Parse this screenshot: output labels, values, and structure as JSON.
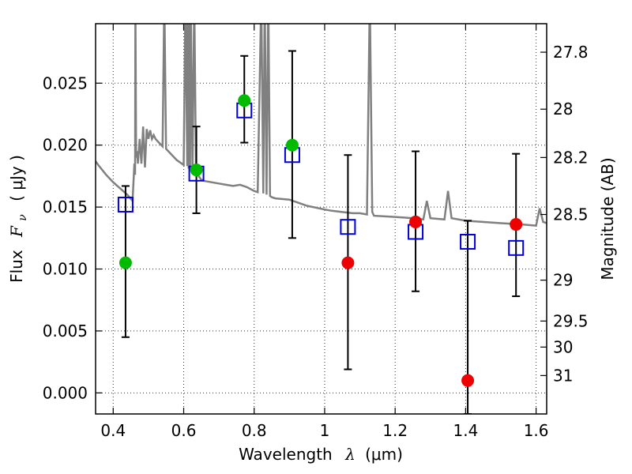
{
  "chart_data": {
    "type": "scatter",
    "xlabel": {
      "text": "Wavelength",
      "symbol": "λ",
      "unit": "(μm)"
    },
    "ylabel": {
      "text": "Flux",
      "symbol": "F",
      "sub": "ν",
      "unit": "( μJy )"
    },
    "y2label": "Magnitude (AB)",
    "xlim": [
      0.35,
      1.63
    ],
    "ylim": [
      -0.0017,
      0.0298
    ],
    "grid": true,
    "x_ticks": [
      {
        "v": 0.4,
        "label": "0.4"
      },
      {
        "v": 0.6,
        "label": "0.6"
      },
      {
        "v": 0.8,
        "label": "0.8"
      },
      {
        "v": 1.0,
        "label": "1"
      },
      {
        "v": 1.2,
        "label": "1.2"
      },
      {
        "v": 1.4,
        "label": "1.4"
      },
      {
        "v": 1.6,
        "label": "1.6"
      }
    ],
    "y_ticks": [
      {
        "v": 0.0,
        "label": "0.000"
      },
      {
        "v": 0.005,
        "label": "0.005"
      },
      {
        "v": 0.01,
        "label": "0.010"
      },
      {
        "v": 0.015,
        "label": "0.015"
      },
      {
        "v": 0.02,
        "label": "0.020"
      },
      {
        "v": 0.025,
        "label": "0.025"
      }
    ],
    "y2_ticks": [
      {
        "label": "27.8",
        "flux": 0.0275
      },
      {
        "label": "28",
        "flux": 0.0229
      },
      {
        "label": "28.2",
        "flux": 0.019
      },
      {
        "label": "28.5",
        "flux": 0.0144
      },
      {
        "label": "29",
        "flux": 0.0091
      },
      {
        "label": "29.5",
        "flux": 0.0058
      },
      {
        "label": "30",
        "flux": 0.0037
      },
      {
        "label": "31",
        "flux": 0.0014
      }
    ],
    "model_sed": {
      "color": "#808080",
      "x": [
        0.35,
        0.36,
        0.38,
        0.4,
        0.42,
        0.44,
        0.455,
        0.46,
        0.462,
        0.463,
        0.465,
        0.468,
        0.47,
        0.475,
        0.48,
        0.485,
        0.49,
        0.495,
        0.5,
        0.505,
        0.51,
        0.515,
        0.52,
        0.53,
        0.54,
        0.545,
        0.55,
        0.56,
        0.58,
        0.6,
        0.605,
        0.61,
        0.612,
        0.614,
        0.616,
        0.618,
        0.62,
        0.625,
        0.63,
        0.635,
        0.64,
        0.645,
        0.65,
        0.66,
        0.7,
        0.72,
        0.74,
        0.76,
        0.78,
        0.8,
        0.81,
        0.82,
        0.826,
        0.83,
        0.835,
        0.84,
        0.845,
        0.85,
        0.86,
        0.9,
        0.91,
        0.92,
        0.95,
        1.0,
        1.02,
        1.05,
        1.08,
        1.1,
        1.12,
        1.128,
        1.135,
        1.14,
        1.2,
        1.25,
        1.28,
        1.29,
        1.3,
        1.34,
        1.35,
        1.36,
        1.4,
        1.5,
        1.56,
        1.6,
        1.61,
        1.62,
        1.63
      ],
      "y": [
        0.0187,
        0.0183,
        0.0176,
        0.017,
        0.0165,
        0.016,
        0.0155,
        0.0185,
        0.0176,
        0.032,
        0.019,
        0.0195,
        0.0185,
        0.0205,
        0.0185,
        0.0215,
        0.0182,
        0.0213,
        0.0205,
        0.0212,
        0.0205,
        0.0208,
        0.0205,
        0.0202,
        0.0199,
        0.032,
        0.0197,
        0.0194,
        0.0188,
        0.0184,
        0.032,
        0.0183,
        0.032,
        0.0181,
        0.032,
        0.018,
        0.032,
        0.0179,
        0.032,
        0.0178,
        0.0176,
        0.0174,
        0.0172,
        0.0171,
        0.0169,
        0.0168,
        0.0167,
        0.0168,
        0.0166,
        0.0163,
        0.0162,
        0.032,
        0.0161,
        0.032,
        0.016,
        0.032,
        0.0159,
        0.0158,
        0.0157,
        0.0156,
        0.0155,
        0.0154,
        0.0151,
        0.0148,
        0.0147,
        0.0146,
        0.0145,
        0.0145,
        0.0144,
        0.032,
        0.0146,
        0.0143,
        0.0142,
        0.0141,
        0.014,
        0.0155,
        0.0141,
        0.014,
        0.0163,
        0.0141,
        0.0139,
        0.0137,
        0.0136,
        0.0135,
        0.0149,
        0.0138,
        0.0137
      ]
    },
    "points": [
      {
        "x": 0.435,
        "model": 0.0152,
        "obs": 0.0105,
        "err_lo": 0.0045,
        "err_hi": 0.0167,
        "color": "#00bb00"
      },
      {
        "x": 0.636,
        "model": 0.0177,
        "obs": 0.018,
        "err_lo": 0.0145,
        "err_hi": 0.0215,
        "color": "#00bb00"
      },
      {
        "x": 0.772,
        "model": 0.0228,
        "obs": 0.0236,
        "err_lo": 0.0202,
        "err_hi": 0.0272,
        "color": "#00bb00"
      },
      {
        "x": 0.908,
        "model": 0.0192,
        "obs": 0.02,
        "err_lo": 0.0125,
        "err_hi": 0.0276,
        "color": "#00bb00"
      },
      {
        "x": 1.066,
        "model": 0.0134,
        "obs": 0.0105,
        "err_lo": 0.0019,
        "err_hi": 0.0192,
        "color": "#ee0000"
      },
      {
        "x": 1.258,
        "model": 0.013,
        "obs": 0.0138,
        "err_lo": 0.0082,
        "err_hi": 0.0195,
        "color": "#ee0000"
      },
      {
        "x": 1.406,
        "model": 0.0122,
        "obs": 0.001,
        "err_lo": -0.0017,
        "err_hi": 0.0139,
        "color": "#ee0000"
      },
      {
        "x": 1.543,
        "model": 0.0117,
        "obs": 0.0136,
        "err_lo": 0.0078,
        "err_hi": 0.0193,
        "color": "#ee0000"
      }
    ]
  }
}
